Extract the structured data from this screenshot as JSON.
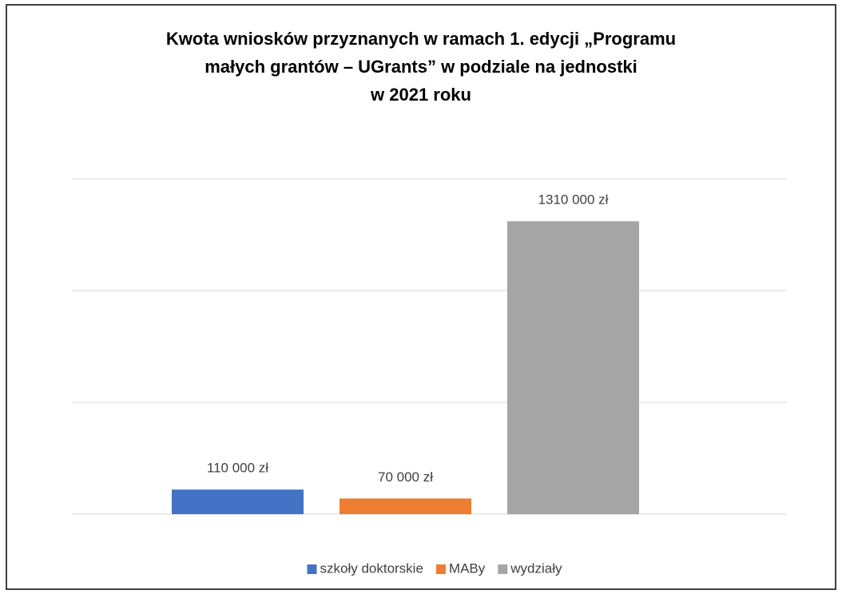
{
  "chart_data": {
    "type": "bar",
    "title": [
      "Kwota wniosków przyznanych w ramach 1. edycji „Programu",
      "małych grantów – UGrants” w podziale na jednostki",
      "w 2021 roku"
    ],
    "categories": [
      null
    ],
    "series": [
      {
        "name": "szkoły doktorskie",
        "color": "#4472c4",
        "values": [
          110000
        ],
        "value_labels": [
          "110 000 zł"
        ]
      },
      {
        "name": "MABy",
        "color": "#ed7d31",
        "values": [
          70000
        ],
        "value_labels": [
          "70 000 zł"
        ]
      },
      {
        "name": "wydziały",
        "color": "#a5a5a5",
        "values": [
          1310000
        ],
        "value_labels": [
          "1310 000 zł"
        ]
      }
    ],
    "ylim": [
      0,
      1500000
    ],
    "yticks": [
      0,
      500000,
      1000000,
      1500000
    ],
    "grid": true,
    "legend": "bottom"
  }
}
